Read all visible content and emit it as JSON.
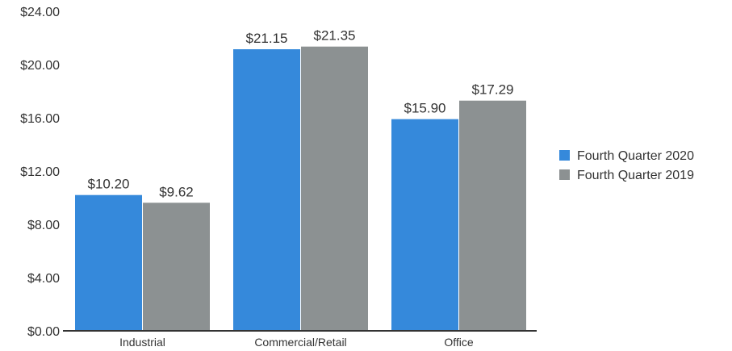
{
  "chart_data": {
    "type": "bar",
    "title": "",
    "xlabel": "",
    "ylabel": "",
    "categories": [
      "Industrial",
      "Commercial/Retail",
      "Office"
    ],
    "series": [
      {
        "name": "Fourth Quarter 2020",
        "values": [
          10.2,
          21.15,
          15.9
        ],
        "labels": [
          "$10.20",
          "$21.15",
          "$15.90"
        ],
        "color": "#3589DB"
      },
      {
        "name": "Fourth Quarter 2019",
        "values": [
          9.62,
          21.35,
          17.29
        ],
        "labels": [
          "$9.62",
          "$21.35",
          "$17.29"
        ],
        "color": "#8C9192"
      }
    ],
    "ylim": [
      0,
      24
    ],
    "yticks": [
      0,
      4,
      8,
      12,
      16,
      20,
      24
    ],
    "ytick_labels": [
      "$0.00",
      "$4.00",
      "$8.00",
      "$12.00",
      "$16.00",
      "$20.00",
      "$24.00"
    ],
    "grid": false,
    "legend_position": "right"
  }
}
